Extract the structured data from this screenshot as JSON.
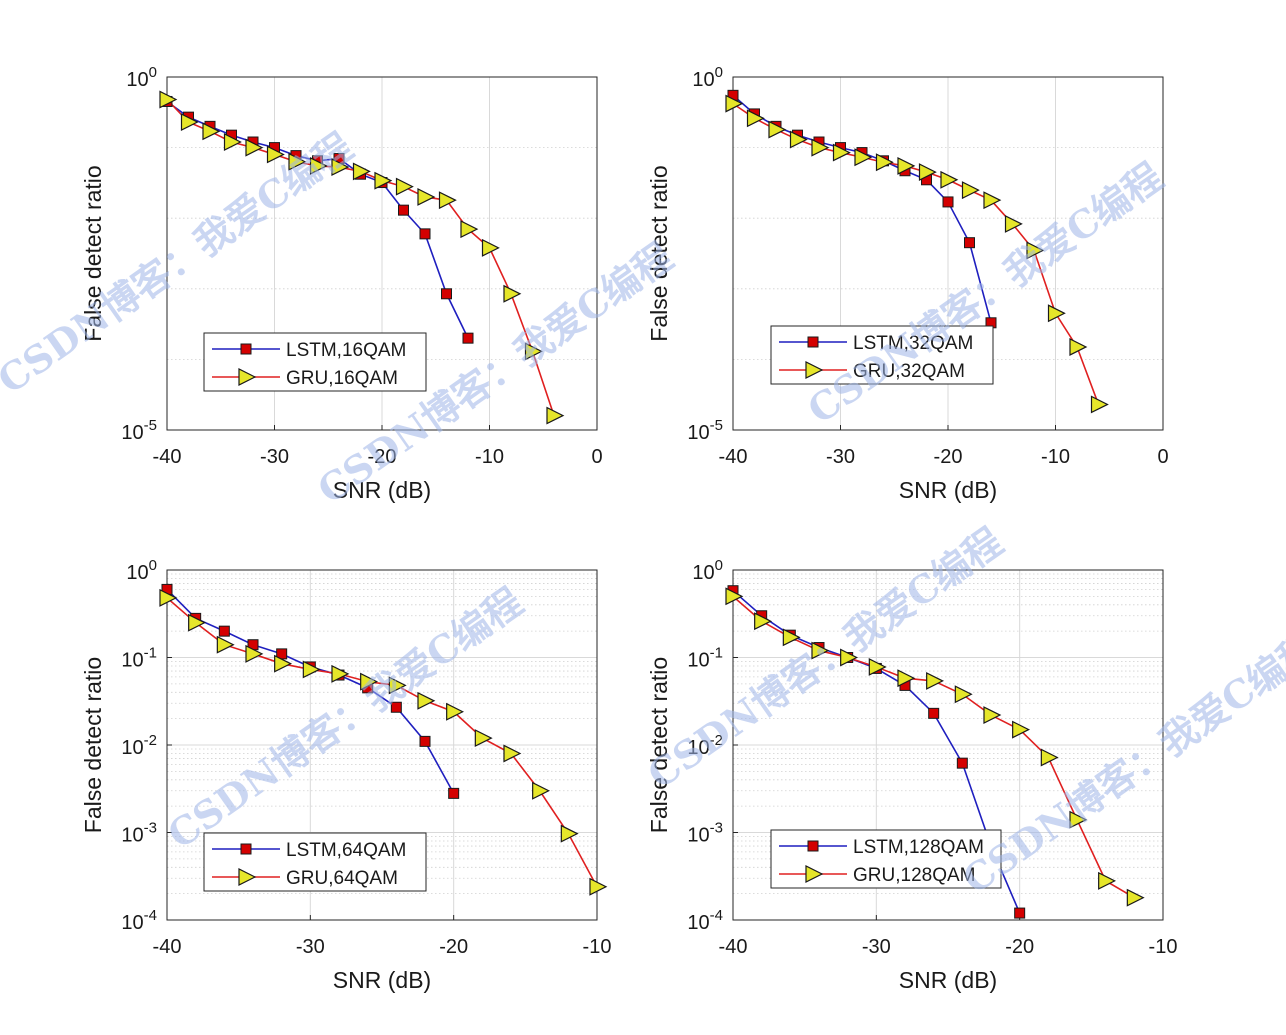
{
  "watermark": "CSDN博客：我爱C编程",
  "series_colors": {
    "LSTM": "#1f1fbf",
    "GRU": "#e02020"
  },
  "marker_colors": {
    "LSTM": "#d40000",
    "GRU": "#e6e62a"
  },
  "chart_data": [
    {
      "type": "line",
      "xlabel": "SNR (dB)",
      "ylabel": "False detect ratio",
      "xlim": [
        -40,
        0
      ],
      "xticks": [
        -40,
        -30,
        -20,
        -10,
        0
      ],
      "yscale": "log",
      "ylim": [
        1e-05,
        1
      ],
      "yticks": [
        {
          "value": 1,
          "base": "10",
          "exp": "0"
        },
        {
          "value": 1e-05,
          "base": "10",
          "exp": "-5"
        }
      ],
      "grid": true,
      "minor_grid": false,
      "legend": "lower-left",
      "series": [
        {
          "name": "LSTM,16QAM",
          "marker": "square",
          "x": [
            -40,
            -38,
            -36,
            -34,
            -32,
            -30,
            -28,
            -26,
            -24,
            -22,
            -20,
            -18,
            -16,
            -14,
            -12
          ],
          "y": [
            0.45,
            0.27,
            0.2,
            0.15,
            0.12,
            0.1,
            0.077,
            0.065,
            0.07,
            0.042,
            0.032,
            0.013,
            0.006,
            0.00085,
            0.0002
          ]
        },
        {
          "name": "GRU,16QAM",
          "marker": "triangle",
          "x": [
            -40,
            -38,
            -36,
            -34,
            -32,
            -30,
            -28,
            -26,
            -24,
            -22,
            -20,
            -18,
            -16,
            -14,
            -12,
            -10,
            -8,
            -6,
            -4
          ],
          "y": [
            0.48,
            0.23,
            0.17,
            0.12,
            0.1,
            0.08,
            0.063,
            0.055,
            0.053,
            0.046,
            0.034,
            0.028,
            0.02,
            0.018,
            0.007,
            0.0038,
            0.00085,
            0.00013,
            1.6e-05
          ]
        }
      ]
    },
    {
      "type": "line",
      "xlabel": "SNR (dB)",
      "ylabel": "False detect ratio",
      "xlim": [
        -40,
        0
      ],
      "xticks": [
        -40,
        -30,
        -20,
        -10,
        0
      ],
      "yscale": "log",
      "ylim": [
        1e-05,
        1
      ],
      "yticks": [
        {
          "value": 1,
          "base": "10",
          "exp": "0"
        },
        {
          "value": 1e-05,
          "base": "10",
          "exp": "-5"
        }
      ],
      "grid": true,
      "minor_grid": false,
      "legend": "lower-left",
      "series": [
        {
          "name": "LSTM,32QAM",
          "marker": "square",
          "x": [
            -40,
            -38,
            -36,
            -34,
            -32,
            -30,
            -28,
            -26,
            -24,
            -22,
            -20,
            -18,
            -16
          ],
          "y": [
            0.55,
            0.3,
            0.2,
            0.15,
            0.12,
            0.1,
            0.085,
            0.065,
            0.047,
            0.035,
            0.017,
            0.0045,
            0.00033
          ]
        },
        {
          "name": "GRU,32QAM",
          "marker": "triangle",
          "x": [
            -40,
            -38,
            -36,
            -34,
            -32,
            -30,
            -28,
            -26,
            -24,
            -22,
            -20,
            -18,
            -16,
            -14,
            -12,
            -10,
            -8,
            -6
          ],
          "y": [
            0.42,
            0.26,
            0.18,
            0.13,
            0.1,
            0.085,
            0.073,
            0.062,
            0.055,
            0.045,
            0.035,
            0.025,
            0.018,
            0.0083,
            0.0035,
            0.00045,
            0.00015,
            2.3e-05
          ]
        }
      ]
    },
    {
      "type": "line",
      "xlabel": "SNR (dB)",
      "ylabel": "False detect ratio",
      "xlim": [
        -40,
        -10
      ],
      "xticks": [
        -40,
        -30,
        -20,
        -10
      ],
      "yscale": "log",
      "ylim": [
        0.0001,
        1
      ],
      "yticks": [
        {
          "value": 1,
          "base": "10",
          "exp": "0"
        },
        {
          "value": 0.1,
          "base": "10",
          "exp": "-1"
        },
        {
          "value": 0.01,
          "base": "10",
          "exp": "-2"
        },
        {
          "value": 0.001,
          "base": "10",
          "exp": "-3"
        },
        {
          "value": 0.0001,
          "base": "10",
          "exp": "-4"
        }
      ],
      "grid": true,
      "minor_grid": true,
      "legend": "lower-left",
      "series": [
        {
          "name": "LSTM,64QAM",
          "marker": "square",
          "x": [
            -40,
            -38,
            -36,
            -34,
            -32,
            -30,
            -28,
            -26,
            -24,
            -22,
            -20
          ],
          "y": [
            0.6,
            0.28,
            0.2,
            0.14,
            0.11,
            0.078,
            0.063,
            0.045,
            0.027,
            0.011,
            0.0028
          ]
        },
        {
          "name": "GRU,64QAM",
          "marker": "triangle",
          "x": [
            -40,
            -38,
            -36,
            -34,
            -32,
            -30,
            -28,
            -26,
            -24,
            -22,
            -20,
            -18,
            -16,
            -14,
            -12,
            -10
          ],
          "y": [
            0.48,
            0.25,
            0.14,
            0.11,
            0.085,
            0.073,
            0.065,
            0.053,
            0.048,
            0.032,
            0.024,
            0.012,
            0.008,
            0.003,
            0.00097,
            0.00024
          ]
        }
      ]
    },
    {
      "type": "line",
      "xlabel": "SNR (dB)",
      "ylabel": "False detect ratio",
      "xlim": [
        -40,
        -10
      ],
      "xticks": [
        -40,
        -30,
        -20,
        -10
      ],
      "yscale": "log",
      "ylim": [
        0.0001,
        1
      ],
      "yticks": [
        {
          "value": 1,
          "base": "10",
          "exp": "0"
        },
        {
          "value": 0.1,
          "base": "10",
          "exp": "-1"
        },
        {
          "value": 0.01,
          "base": "10",
          "exp": "-2"
        },
        {
          "value": 0.001,
          "base": "10",
          "exp": "-3"
        },
        {
          "value": 0.0001,
          "base": "10",
          "exp": "-4"
        }
      ],
      "grid": true,
      "minor_grid": true,
      "legend": "lower-left",
      "series": [
        {
          "name": "LSTM,128QAM",
          "marker": "square",
          "x": [
            -40,
            -38,
            -36,
            -34,
            -32,
            -30,
            -28,
            -26,
            -24,
            -22,
            -20
          ],
          "y": [
            0.58,
            0.3,
            0.18,
            0.13,
            0.1,
            0.075,
            0.048,
            0.023,
            0.0062,
            0.0007,
            0.00012
          ]
        },
        {
          "name": "GRU,128QAM",
          "marker": "triangle",
          "x": [
            -40,
            -38,
            -36,
            -34,
            -32,
            -30,
            -28,
            -26,
            -24,
            -22,
            -20,
            -18,
            -16,
            -14,
            -12
          ],
          "y": [
            0.5,
            0.26,
            0.17,
            0.12,
            0.1,
            0.078,
            0.058,
            0.054,
            0.038,
            0.022,
            0.015,
            0.0072,
            0.0014,
            0.00028,
            0.00018
          ]
        }
      ]
    }
  ]
}
